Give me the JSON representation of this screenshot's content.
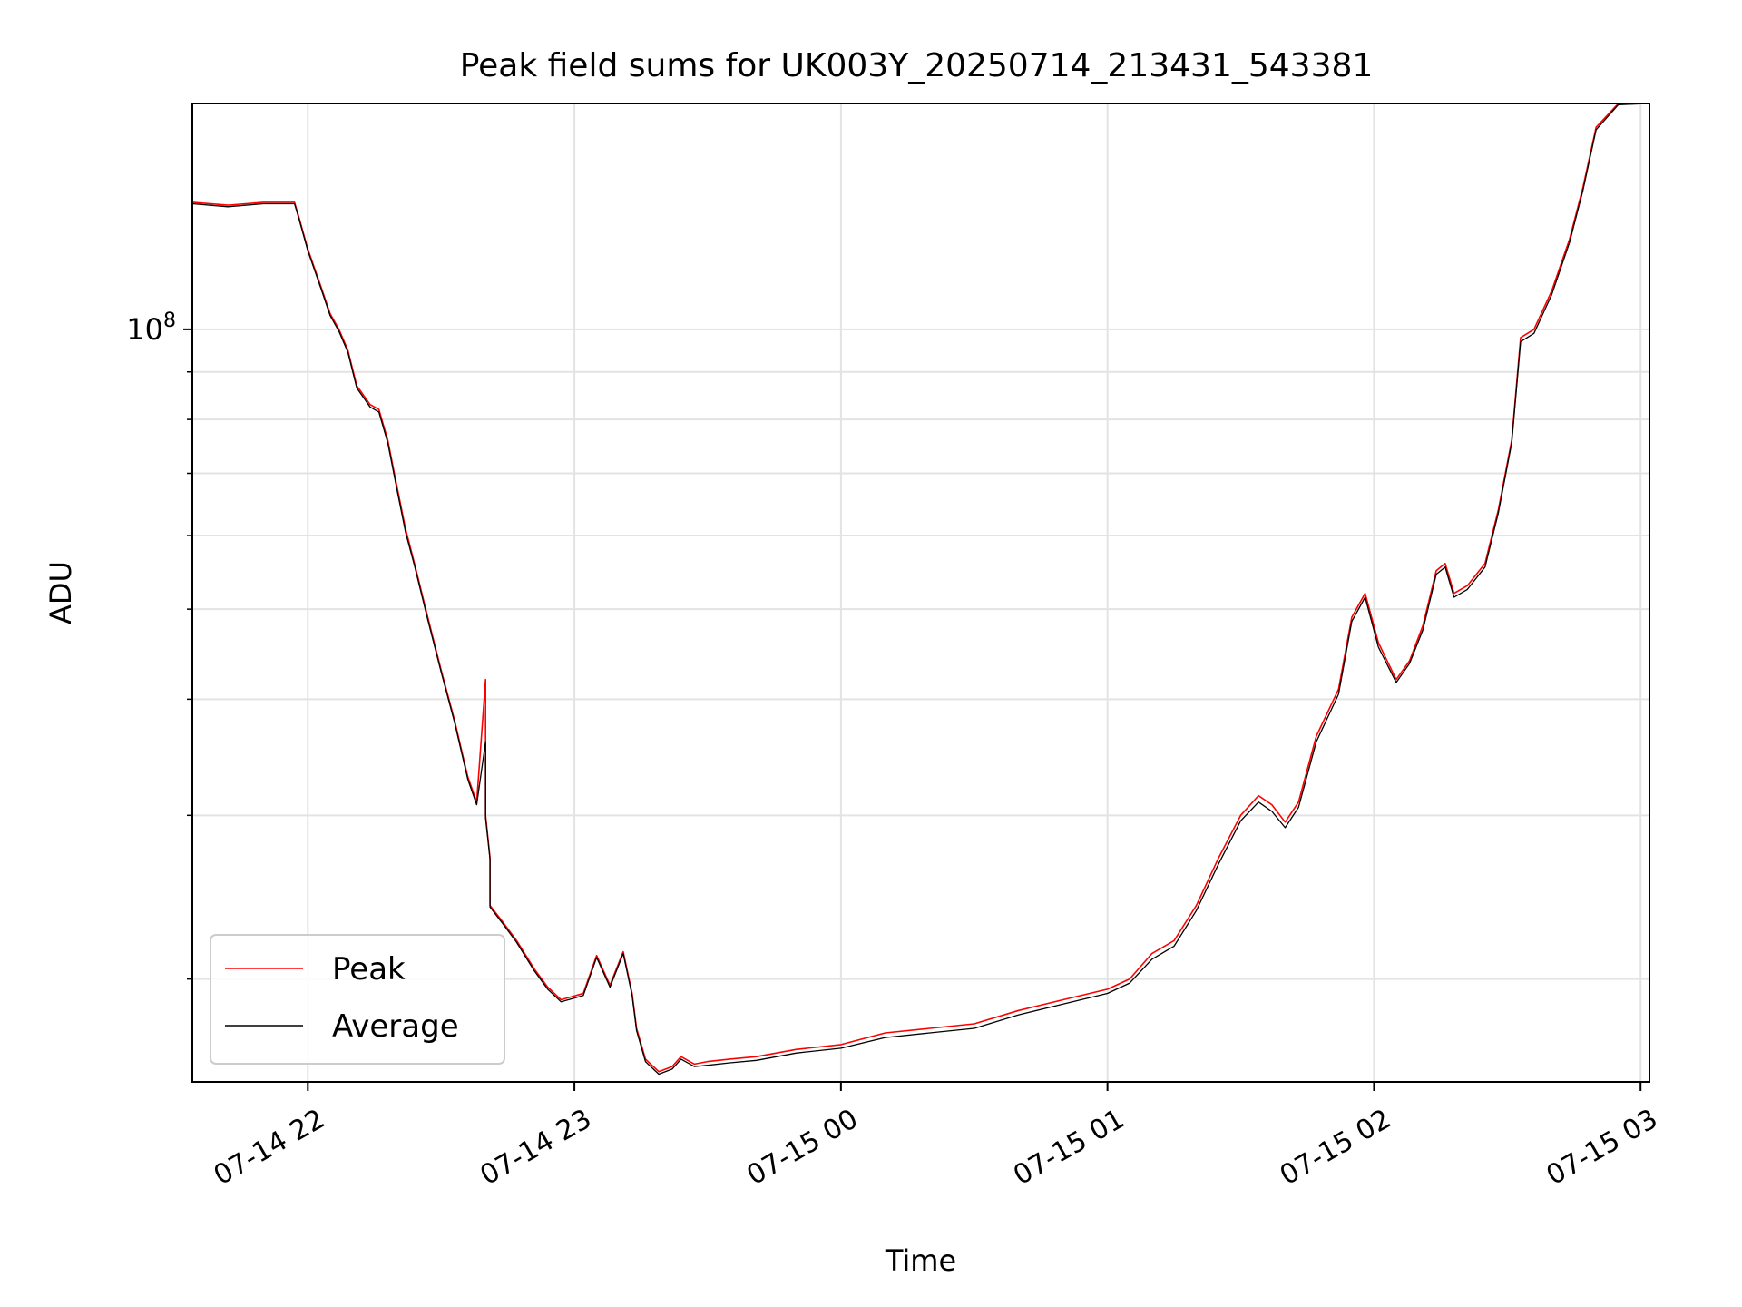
{
  "chart_data": {
    "type": "line",
    "title": "Peak field sums for UK003Y_20250714_213431_543381",
    "xlabel": "Time",
    "ylabel": "ADU",
    "y_scale": "log",
    "ylim": [
      15500000,
      175000000
    ],
    "xlim": [
      "2025-07-14 21:34",
      "2025-07-15 03:02"
    ],
    "grid": true,
    "legend_position": "lower-left",
    "x_ticks": [
      {
        "t": "2025-07-14 22:00",
        "label": "07-14 22"
      },
      {
        "t": "2025-07-14 23:00",
        "label": "07-14 23"
      },
      {
        "t": "2025-07-15 00:00",
        "label": "07-15 00"
      },
      {
        "t": "2025-07-15 01:00",
        "label": "07-15 01"
      },
      {
        "t": "2025-07-15 02:00",
        "label": "07-15 02"
      },
      {
        "t": "2025-07-15 03:00",
        "label": "07-15 03"
      }
    ],
    "y_major_ticks": [
      {
        "value": 100000000,
        "base": "10",
        "exp": "8"
      }
    ],
    "y_minor_ticks": [
      20000000,
      30000000,
      40000000,
      50000000,
      60000000,
      70000000,
      80000000,
      90000000
    ],
    "series": [
      {
        "name": "Peak",
        "color": "#ff0000",
        "times": [
          "2025-07-14 21:34",
          "2025-07-14 21:42",
          "2025-07-14 21:50",
          "2025-07-14 21:57",
          "2025-07-14 21:58",
          "2025-07-14 22:00",
          "2025-07-14 22:03",
          "2025-07-14 22:05",
          "2025-07-14 22:07",
          "2025-07-14 22:09",
          "2025-07-14 22:11",
          "2025-07-14 22:14",
          "2025-07-14 22:16",
          "2025-07-14 22:18",
          "2025-07-14 22:20",
          "2025-07-14 22:22",
          "2025-07-14 22:24",
          "2025-07-14 22:27",
          "2025-07-14 22:30",
          "2025-07-14 22:33",
          "2025-07-14 22:36",
          "2025-07-14 22:38",
          "2025-07-14 22:40",
          "2025-07-14 22:40",
          "2025-07-14 22:41",
          "2025-07-14 22:41",
          "2025-07-14 22:44",
          "2025-07-14 22:47",
          "2025-07-14 22:51",
          "2025-07-14 22:54",
          "2025-07-14 22:57",
          "2025-07-14 23:02",
          "2025-07-14 23:05",
          "2025-07-14 23:08",
          "2025-07-14 23:11",
          "2025-07-14 23:13",
          "2025-07-14 23:14",
          "2025-07-14 23:16",
          "2025-07-14 23:19",
          "2025-07-14 23:22",
          "2025-07-14 23:24",
          "2025-07-14 23:27",
          "2025-07-14 23:30",
          "2025-07-14 23:35",
          "2025-07-14 23:41",
          "2025-07-14 23:50",
          "2025-07-15 00:00",
          "2025-07-15 00:10",
          "2025-07-15 00:20",
          "2025-07-15 00:30",
          "2025-07-15 00:40",
          "2025-07-15 00:50",
          "2025-07-15 01:00",
          "2025-07-15 01:05",
          "2025-07-15 01:10",
          "2025-07-15 01:15",
          "2025-07-15 01:20",
          "2025-07-15 01:25",
          "2025-07-15 01:30",
          "2025-07-15 01:34",
          "2025-07-15 01:37",
          "2025-07-15 01:40",
          "2025-07-15 01:43",
          "2025-07-15 01:47",
          "2025-07-15 01:52",
          "2025-07-15 01:55",
          "2025-07-15 01:58",
          "2025-07-15 02:01",
          "2025-07-15 02:05",
          "2025-07-15 02:08",
          "2025-07-15 02:11",
          "2025-07-15 02:14",
          "2025-07-15 02:16",
          "2025-07-15 02:18",
          "2025-07-15 02:21",
          "2025-07-15 02:25",
          "2025-07-15 02:28",
          "2025-07-15 02:31",
          "2025-07-15 02:33",
          "2025-07-15 02:36",
          "2025-07-15 02:40",
          "2025-07-15 02:44",
          "2025-07-15 02:47",
          "2025-07-15 02:50",
          "2025-07-15 02:55",
          "2025-07-15 03:02"
        ],
        "values": [
          137000000,
          136000000,
          137000000,
          137000000,
          132000000,
          122000000,
          111000000,
          104000000,
          100000000,
          95000000,
          87000000,
          83000000,
          82000000,
          76000000,
          68000000,
          61000000,
          56000000,
          49000000,
          43000000,
          38000000,
          33000000,
          31000000,
          42000000,
          30000000,
          27000000,
          24000000,
          23000000,
          22000000,
          20500000,
          19600000,
          19000000,
          19300000,
          21200000,
          19700000,
          21400000,
          19300000,
          17700000,
          16400000,
          15900000,
          16100000,
          16500000,
          16200000,
          16300000,
          16400000,
          16500000,
          16800000,
          17000000,
          17500000,
          17700000,
          17900000,
          18500000,
          19000000,
          19500000,
          20000000,
          21300000,
          22000000,
          24000000,
          27000000,
          30000000,
          31500000,
          30800000,
          29500000,
          31000000,
          36500000,
          41000000,
          49000000,
          52000000,
          46000000,
          42000000,
          44000000,
          48000000,
          55000000,
          56000000,
          52000000,
          53000000,
          56000000,
          64000000,
          76000000,
          98000000,
          100000000,
          110000000,
          125000000,
          142000000,
          165000000,
          175000000,
          175000000
        ]
      },
      {
        "name": "Average",
        "color": "#000000",
        "times": [
          "2025-07-14 21:34",
          "2025-07-14 21:42",
          "2025-07-14 21:50",
          "2025-07-14 21:57",
          "2025-07-14 21:58",
          "2025-07-14 22:00",
          "2025-07-14 22:03",
          "2025-07-14 22:05",
          "2025-07-14 22:07",
          "2025-07-14 22:09",
          "2025-07-14 22:11",
          "2025-07-14 22:14",
          "2025-07-14 22:16",
          "2025-07-14 22:18",
          "2025-07-14 22:20",
          "2025-07-14 22:22",
          "2025-07-14 22:24",
          "2025-07-14 22:27",
          "2025-07-14 22:30",
          "2025-07-14 22:33",
          "2025-07-14 22:36",
          "2025-07-14 22:38",
          "2025-07-14 22:40",
          "2025-07-14 22:40",
          "2025-07-14 22:41",
          "2025-07-14 22:41",
          "2025-07-14 22:44",
          "2025-07-14 22:47",
          "2025-07-14 22:51",
          "2025-07-14 22:54",
          "2025-07-14 22:57",
          "2025-07-14 23:02",
          "2025-07-14 23:05",
          "2025-07-14 23:08",
          "2025-07-14 23:11",
          "2025-07-14 23:13",
          "2025-07-14 23:14",
          "2025-07-14 23:16",
          "2025-07-14 23:19",
          "2025-07-14 23:22",
          "2025-07-14 23:24",
          "2025-07-14 23:27",
          "2025-07-14 23:30",
          "2025-07-14 23:35",
          "2025-07-14 23:41",
          "2025-07-14 23:50",
          "2025-07-15 00:00",
          "2025-07-15 00:10",
          "2025-07-15 00:20",
          "2025-07-15 00:30",
          "2025-07-15 00:40",
          "2025-07-15 00:50",
          "2025-07-15 01:00",
          "2025-07-15 01:05",
          "2025-07-15 01:10",
          "2025-07-15 01:15",
          "2025-07-15 01:20",
          "2025-07-15 01:25",
          "2025-07-15 01:30",
          "2025-07-15 01:34",
          "2025-07-15 01:37",
          "2025-07-15 01:40",
          "2025-07-15 01:43",
          "2025-07-15 01:47",
          "2025-07-15 01:52",
          "2025-07-15 01:55",
          "2025-07-15 01:58",
          "2025-07-15 02:01",
          "2025-07-15 02:05",
          "2025-07-15 02:08",
          "2025-07-15 02:11",
          "2025-07-15 02:14",
          "2025-07-15 02:16",
          "2025-07-15 02:18",
          "2025-07-15 02:21",
          "2025-07-15 02:25",
          "2025-07-15 02:28",
          "2025-07-15 02:31",
          "2025-07-15 02:33",
          "2025-07-15 02:36",
          "2025-07-15 02:40",
          "2025-07-15 02:44",
          "2025-07-15 02:47",
          "2025-07-15 02:50",
          "2025-07-15 02:55",
          "2025-07-15 03:02"
        ],
        "values": [
          136500000,
          135500000,
          136500000,
          136500000,
          131500000,
          121500000,
          110500000,
          103500000,
          99500000,
          94500000,
          86500000,
          82500000,
          81500000,
          75500000,
          67500000,
          60500000,
          55700000,
          48700000,
          42800000,
          37800000,
          32800000,
          30800000,
          36000000,
          29800000,
          26900000,
          23900000,
          22900000,
          21900000,
          20400000,
          19500000,
          18900000,
          19200000,
          21100000,
          19600000,
          21300000,
          19200000,
          17600000,
          16300000,
          15800000,
          16000000,
          16400000,
          16100000,
          16150000,
          16250000,
          16350000,
          16650000,
          16850000,
          17300000,
          17500000,
          17700000,
          18300000,
          18800000,
          19300000,
          19800000,
          21000000,
          21700000,
          23700000,
          26600000,
          29600000,
          31000000,
          30300000,
          29100000,
          30600000,
          36000000,
          40500000,
          48500000,
          51500000,
          45500000,
          41700000,
          43700000,
          47500000,
          54500000,
          55500000,
          51500000,
          52500000,
          55500000,
          63500000,
          75500000,
          97000000,
          99000000,
          109000000,
          124000000,
          141000000,
          164000000,
          174500000,
          175000000
        ]
      }
    ]
  }
}
